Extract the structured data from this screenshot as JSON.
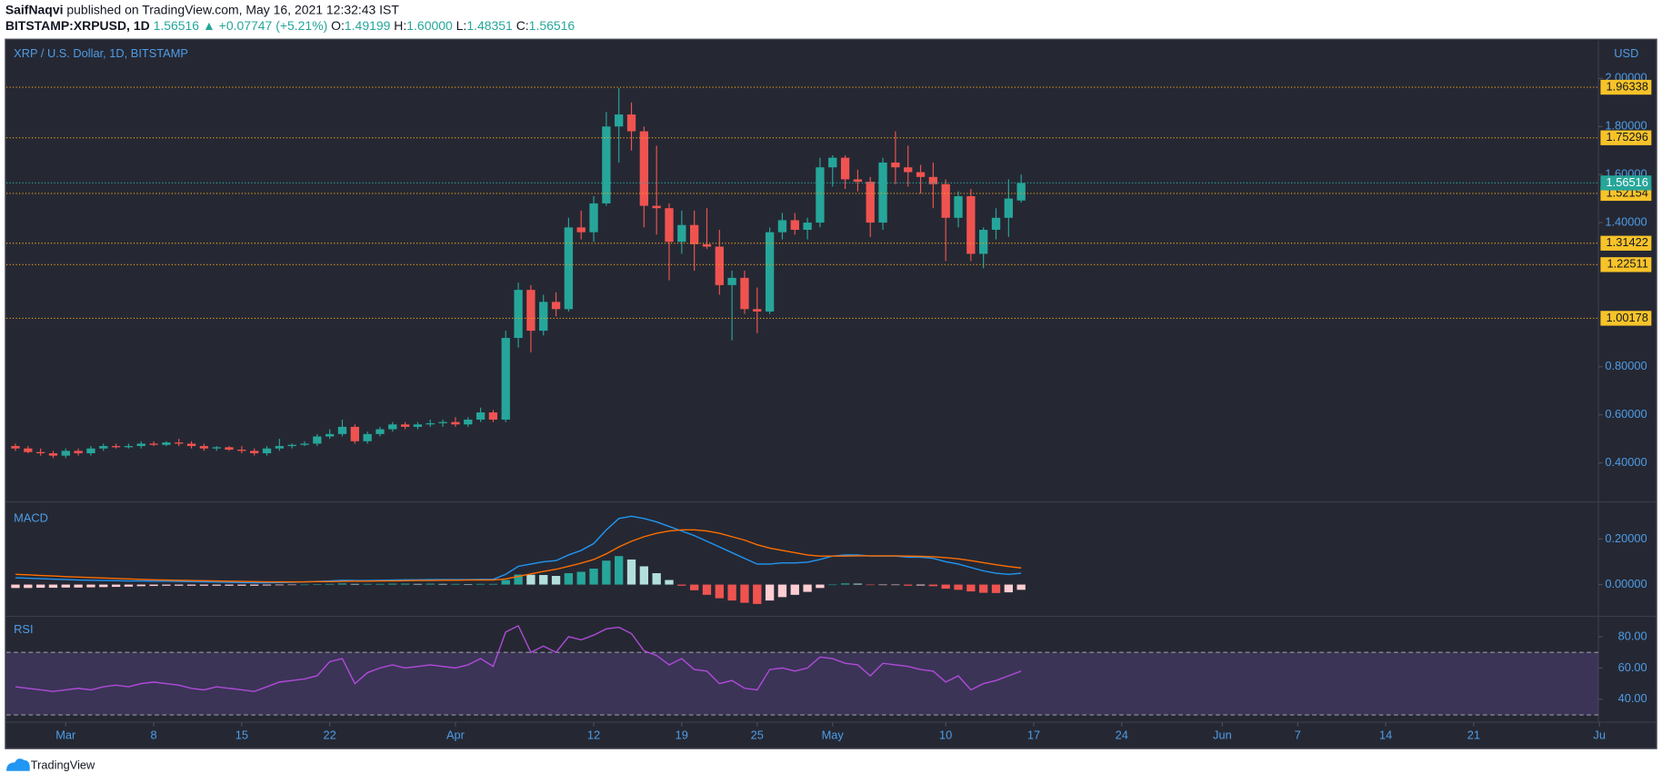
{
  "header": {
    "author": "SaifNaqvi",
    "published": "published on TradingView.com, May 16, 2021 12:32:43 IST",
    "symbol": "BITSTAMP:XRPUSD, 1D",
    "price": "1.56516",
    "change": "▲ +0.07747 (+5.21%)",
    "ohlc": [
      {
        "key": "O:",
        "value": "1.49199"
      },
      {
        "key": "H:",
        "value": "1.60000"
      },
      {
        "key": "L:",
        "value": "1.48351"
      },
      {
        "key": "C:",
        "value": "1.56516"
      }
    ]
  },
  "footer": {
    "brand": "TradingView"
  },
  "chart_data": [
    {
      "type": "candlestick",
      "title": "XRP / U.S. Dollar, 1D, BITSTAMP",
      "unit": "USD",
      "x": [
        "Feb 25",
        "Feb 26",
        "Feb 27",
        "Feb 28",
        "Mar 1",
        "Mar 2",
        "Mar 3",
        "Mar 4",
        "Mar 5",
        "Mar 6",
        "Mar 7",
        "Mar 8",
        "Mar 9",
        "Mar 10",
        "Mar 11",
        "Mar 12",
        "Mar 13",
        "Mar 14",
        "Mar 15",
        "Mar 16",
        "Mar 17",
        "Mar 18",
        "Mar 19",
        "Mar 20",
        "Mar 21",
        "Mar 22",
        "Mar 23",
        "Mar 24",
        "Mar 25",
        "Mar 26",
        "Mar 27",
        "Mar 28",
        "Mar 29",
        "Mar 30",
        "Mar 31",
        "Apr 1",
        "Apr 2",
        "Apr 3",
        "Apr 4",
        "Apr 5",
        "Apr 6",
        "Apr 7",
        "Apr 8",
        "Apr 9",
        "Apr 10",
        "Apr 11",
        "Apr 12",
        "Apr 13",
        "Apr 14",
        "Apr 15",
        "Apr 16",
        "Apr 17",
        "Apr 18",
        "Apr 19",
        "Apr 20",
        "Apr 21",
        "Apr 22",
        "Apr 23",
        "Apr 24",
        "Apr 25",
        "Apr 26",
        "Apr 27",
        "Apr 28",
        "Apr 29",
        "Apr 30",
        "May 1",
        "May 2",
        "May 3",
        "May 4",
        "May 5",
        "May 6",
        "May 7",
        "May 8",
        "May 9",
        "May 10",
        "May 11",
        "May 12",
        "May 13",
        "May 14",
        "May 15",
        "May 16"
      ],
      "open": [
        0.47,
        0.46,
        0.445,
        0.44,
        0.43,
        0.45,
        0.44,
        0.46,
        0.47,
        0.465,
        0.47,
        0.48,
        0.475,
        0.485,
        0.48,
        0.47,
        0.46,
        0.465,
        0.455,
        0.45,
        0.44,
        0.46,
        0.47,
        0.475,
        0.48,
        0.51,
        0.52,
        0.55,
        0.49,
        0.52,
        0.54,
        0.56,
        0.55,
        0.56,
        0.565,
        0.57,
        0.56,
        0.58,
        0.61,
        0.58,
        0.92,
        1.12,
        0.95,
        1.07,
        1.04,
        1.38,
        1.36,
        1.48,
        1.8,
        1.85,
        1.78,
        1.47,
        1.46,
        1.32,
        1.39,
        1.31,
        1.3,
        1.14,
        1.17,
        1.04,
        1.03,
        1.36,
        1.41,
        1.37,
        1.4,
        1.63,
        1.67,
        1.58,
        1.57,
        1.4,
        1.65,
        1.63,
        1.61,
        1.59,
        1.56,
        1.42,
        1.51,
        1.27,
        1.37,
        1.42,
        1.49199
      ],
      "high": [
        0.48,
        0.47,
        0.46,
        0.45,
        0.46,
        0.46,
        0.47,
        0.48,
        0.48,
        0.48,
        0.49,
        0.49,
        0.49,
        0.5,
        0.49,
        0.48,
        0.47,
        0.47,
        0.47,
        0.46,
        0.47,
        0.5,
        0.48,
        0.49,
        0.52,
        0.54,
        0.58,
        0.56,
        0.53,
        0.55,
        0.57,
        0.57,
        0.57,
        0.58,
        0.58,
        0.59,
        0.59,
        0.63,
        0.62,
        0.95,
        1.15,
        1.14,
        1.1,
        1.11,
        1.42,
        1.45,
        1.51,
        1.86,
        1.96,
        1.9,
        1.8,
        1.72,
        1.48,
        1.45,
        1.45,
        1.46,
        1.37,
        1.2,
        1.2,
        1.13,
        1.38,
        1.44,
        1.44,
        1.42,
        1.67,
        1.68,
        1.68,
        1.62,
        1.59,
        1.67,
        1.78,
        1.72,
        1.64,
        1.65,
        1.58,
        1.53,
        1.54,
        1.38,
        1.46,
        1.58,
        1.6
      ],
      "low": [
        0.45,
        0.44,
        0.43,
        0.42,
        0.42,
        0.43,
        0.43,
        0.45,
        0.46,
        0.46,
        0.46,
        0.47,
        0.47,
        0.47,
        0.46,
        0.45,
        0.45,
        0.45,
        0.44,
        0.43,
        0.43,
        0.45,
        0.46,
        0.47,
        0.47,
        0.5,
        0.51,
        0.48,
        0.48,
        0.51,
        0.53,
        0.54,
        0.54,
        0.55,
        0.55,
        0.55,
        0.55,
        0.57,
        0.57,
        0.57,
        0.88,
        0.86,
        0.93,
        1.01,
        1.03,
        1.33,
        1.32,
        1.47,
        1.65,
        1.7,
        1.38,
        1.35,
        1.16,
        1.27,
        1.2,
        1.29,
        1.1,
        0.91,
        1.02,
        0.94,
        1.02,
        1.33,
        1.35,
        1.33,
        1.38,
        1.55,
        1.54,
        1.53,
        1.34,
        1.37,
        1.56,
        1.55,
        1.52,
        1.46,
        1.24,
        1.38,
        1.24,
        1.21,
        1.33,
        1.34,
        1.48351
      ],
      "close": [
        0.46,
        0.445,
        0.44,
        0.43,
        0.45,
        0.44,
        0.46,
        0.47,
        0.465,
        0.47,
        0.48,
        0.475,
        0.485,
        0.48,
        0.47,
        0.46,
        0.465,
        0.455,
        0.45,
        0.44,
        0.46,
        0.47,
        0.475,
        0.48,
        0.51,
        0.52,
        0.55,
        0.49,
        0.52,
        0.54,
        0.56,
        0.55,
        0.56,
        0.565,
        0.57,
        0.56,
        0.58,
        0.61,
        0.58,
        0.92,
        1.12,
        0.95,
        1.07,
        1.04,
        1.38,
        1.36,
        1.48,
        1.8,
        1.85,
        1.78,
        1.47,
        1.46,
        1.32,
        1.39,
        1.31,
        1.3,
        1.14,
        1.17,
        1.04,
        1.03,
        1.36,
        1.41,
        1.37,
        1.4,
        1.63,
        1.67,
        1.58,
        1.57,
        1.4,
        1.65,
        1.63,
        1.61,
        1.59,
        1.56,
        1.42,
        1.51,
        1.27,
        1.37,
        1.42,
        1.5,
        1.56516
      ],
      "up_color": "#26a69a",
      "down_color": "#ef5350",
      "levels": [
        1.96338,
        1.75296,
        1.52154,
        1.31422,
        1.22511,
        1.00178
      ],
      "level_color": "#f7a21b",
      "xlim": [
        "Feb 25",
        "Jul 1"
      ],
      "xticks": [
        {
          "value": "Mar 1",
          "label": "Mar"
        },
        {
          "value": "Mar 8",
          "label": "8"
        },
        {
          "value": "Mar 15",
          "label": "15"
        },
        {
          "value": "Mar 22",
          "label": "22"
        },
        {
          "value": "Apr 1",
          "label": "Apr"
        },
        {
          "value": "Apr 12",
          "label": "12"
        },
        {
          "value": "Apr 19",
          "label": "19"
        },
        {
          "value": "Apr 25",
          "label": "25"
        },
        {
          "value": "May 1",
          "label": "May"
        },
        {
          "value": "May 10",
          "label": "10"
        },
        {
          "value": "May 17",
          "label": "17"
        },
        {
          "value": "May 24",
          "label": "24"
        },
        {
          "value": "Jun 1",
          "label": "Jun"
        },
        {
          "value": "Jun 7",
          "label": "7"
        },
        {
          "value": "Jun 14",
          "label": "14"
        },
        {
          "value": "Jun 21",
          "label": "21"
        },
        {
          "value": "Jul 1",
          "label": "Ju"
        }
      ],
      "ylim": [
        0.255,
        2.159
      ],
      "yticks": [
        {
          "value": 0.4,
          "label": "0.40000"
        },
        {
          "value": 0.6,
          "label": "0.60000"
        },
        {
          "value": 0.8,
          "label": "0.80000"
        },
        {
          "value": 1.4,
          "label": "1.40000"
        },
        {
          "value": 1.6,
          "label": "1.60000"
        },
        {
          "value": 1.8,
          "label": "1.80000"
        },
        {
          "value": 2.0,
          "label": "2.00000"
        }
      ],
      "grid": false
    },
    {
      "type": "macd",
      "title": "MACD",
      "series": [
        {
          "name": "MACD",
          "color": "#2196f3",
          "values": [
            0.03,
            0.028,
            0.026,
            0.024,
            0.022,
            0.02,
            0.019,
            0.018,
            0.017,
            0.016,
            0.016,
            0.015,
            0.015,
            0.014,
            0.013,
            0.012,
            0.011,
            0.01,
            0.009,
            0.008,
            0.008,
            0.009,
            0.01,
            0.012,
            0.014,
            0.016,
            0.019,
            0.018,
            0.018,
            0.019,
            0.02,
            0.021,
            0.021,
            0.022,
            0.022,
            0.022,
            0.022,
            0.023,
            0.023,
            0.045,
            0.08,
            0.09,
            0.1,
            0.105,
            0.13,
            0.15,
            0.18,
            0.24,
            0.29,
            0.3,
            0.29,
            0.275,
            0.255,
            0.235,
            0.215,
            0.19,
            0.165,
            0.14,
            0.115,
            0.09,
            0.09,
            0.095,
            0.095,
            0.098,
            0.11,
            0.125,
            0.13,
            0.13,
            0.125,
            0.125,
            0.125,
            0.12,
            0.12,
            0.115,
            0.1,
            0.09,
            0.075,
            0.06,
            0.05,
            0.045,
            0.05
          ]
        },
        {
          "name": "Signal",
          "color": "#ff6d00",
          "values": [
            0.045,
            0.043,
            0.04,
            0.038,
            0.035,
            0.033,
            0.031,
            0.029,
            0.027,
            0.025,
            0.023,
            0.021,
            0.02,
            0.019,
            0.018,
            0.017,
            0.016,
            0.015,
            0.014,
            0.013,
            0.012,
            0.012,
            0.012,
            0.012,
            0.013,
            0.013,
            0.014,
            0.015,
            0.015,
            0.016,
            0.016,
            0.017,
            0.018,
            0.018,
            0.019,
            0.019,
            0.02,
            0.02,
            0.02,
            0.025,
            0.036,
            0.047,
            0.058,
            0.067,
            0.08,
            0.094,
            0.11,
            0.135,
            0.165,
            0.19,
            0.21,
            0.225,
            0.235,
            0.24,
            0.24,
            0.235,
            0.225,
            0.21,
            0.195,
            0.175,
            0.16,
            0.15,
            0.14,
            0.13,
            0.125,
            0.125,
            0.125,
            0.126,
            0.126,
            0.126,
            0.126,
            0.125,
            0.124,
            0.122,
            0.118,
            0.113,
            0.105,
            0.096,
            0.087,
            0.079,
            0.073
          ]
        }
      ],
      "histogram": [
        -0.015,
        -0.015,
        -0.014,
        -0.014,
        -0.013,
        -0.013,
        -0.012,
        -0.011,
        -0.01,
        -0.009,
        -0.007,
        -0.006,
        -0.005,
        -0.005,
        -0.005,
        -0.005,
        -0.005,
        -0.005,
        -0.005,
        -0.005,
        -0.004,
        -0.003,
        -0.002,
        0,
        0.001,
        0.003,
        0.005,
        0.003,
        0.003,
        0.003,
        0.004,
        0.004,
        0.003,
        0.004,
        0.003,
        0.003,
        0.002,
        0.003,
        0.003,
        0.02,
        0.044,
        0.043,
        0.042,
        0.038,
        0.05,
        0.056,
        0.07,
        0.105,
        0.125,
        0.11,
        0.08,
        0.05,
        0.02,
        -0.005,
        -0.025,
        -0.045,
        -0.06,
        -0.07,
        -0.08,
        -0.085,
        -0.07,
        -0.055,
        -0.045,
        -0.032,
        -0.015,
        0,
        0.005,
        0.004,
        -0.001,
        -0.001,
        -0.001,
        -0.005,
        -0.004,
        -0.007,
        -0.018,
        -0.023,
        -0.03,
        -0.036,
        -0.037,
        -0.034,
        -0.023
      ],
      "histogram_colors": [
        "#26a69a",
        "#b2dfdb",
        "#ffcdd2",
        "#ef5350"
      ],
      "ylim": [
        -0.13,
        0.344
      ],
      "yticks": [
        {
          "value": 0,
          "label": "0.00000"
        },
        {
          "value": 0.2,
          "label": "0.20000"
        }
      ]
    },
    {
      "type": "line",
      "title": "RSI",
      "series": [
        {
          "name": "RSI",
          "color": "#b04ad8",
          "values": [
            48,
            47,
            46,
            45,
            46,
            47,
            46,
            48,
            49,
            48,
            50,
            51,
            50,
            49,
            47,
            46,
            48,
            47,
            46,
            45,
            48,
            51,
            52,
            53,
            55,
            64,
            66,
            50,
            57,
            60,
            62,
            60,
            61,
            62,
            61,
            60,
            62,
            66,
            61,
            83,
            87,
            70,
            74,
            70,
            80,
            78,
            81,
            85,
            86,
            82,
            71,
            68,
            62,
            66,
            59,
            58,
            50,
            52,
            47,
            46,
            59,
            60,
            58,
            60,
            67,
            66,
            63,
            62,
            55,
            63,
            62,
            61,
            59,
            58,
            51,
            55,
            46,
            50,
            52,
            55,
            58
          ]
        }
      ],
      "band": [
        30,
        70
      ],
      "band_color": "#7e57c2",
      "ylim": [
        26,
        91
      ],
      "yticks": [
        {
          "value": 40,
          "label": "40.00"
        },
        {
          "value": 60,
          "label": "60.00"
        },
        {
          "value": 80,
          "label": "80.00"
        }
      ]
    }
  ]
}
